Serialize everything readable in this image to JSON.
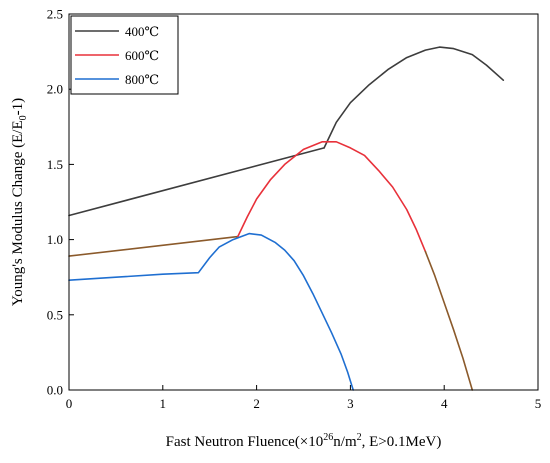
{
  "chart_data": {
    "type": "line",
    "title": "",
    "xlabel": {
      "main": "Fast Neutron Fluence(×10",
      "sup": "26",
      "mid": "n/m",
      "sup2": "2",
      "end": ", E>0.1MeV)"
    },
    "ylabel": {
      "main": "Young's Modulus Change (E/E",
      "sub": "0",
      "end": "-1)"
    },
    "xlim": [
      0,
      5
    ],
    "ylim": [
      0,
      2.5
    ],
    "xticks": [
      "0",
      "1",
      "2",
      "3",
      "4",
      "5"
    ],
    "yticks": [
      "0.0",
      "0.5",
      "1.0",
      "1.5",
      "2.0",
      "2.5"
    ],
    "grid": false,
    "legend_position": "top-left",
    "series": [
      {
        "name": "400℃",
        "color": "#3d3d3d",
        "points": [
          [
            0.0,
            1.16
          ],
          [
            2.72,
            1.61
          ]
        ]
      },
      {
        "name": "400℃",
        "color": "#3d3d3d",
        "points": [
          [
            2.72,
            1.61
          ],
          [
            2.85,
            1.78
          ],
          [
            3.0,
            1.91
          ],
          [
            3.2,
            2.03
          ],
          [
            3.4,
            2.13
          ],
          [
            3.6,
            2.21
          ],
          [
            3.8,
            2.26
          ],
          [
            3.95,
            2.28
          ],
          [
            4.1,
            2.27
          ],
          [
            4.3,
            2.23
          ],
          [
            4.45,
            2.16
          ],
          [
            4.63,
            2.06
          ]
        ]
      },
      {
        "name": "600℃",
        "color": "#8b5a2b",
        "points": [
          [
            0.0,
            0.89
          ],
          [
            1.8,
            1.02
          ]
        ]
      },
      {
        "name": "600℃",
        "color": "#e8313a",
        "points": [
          [
            1.8,
            1.02
          ],
          [
            1.9,
            1.15
          ],
          [
            2.0,
            1.27
          ],
          [
            2.15,
            1.4
          ],
          [
            2.3,
            1.5
          ],
          [
            2.5,
            1.6
          ],
          [
            2.7,
            1.65
          ],
          [
            2.85,
            1.65
          ],
          [
            3.0,
            1.61
          ],
          [
            3.15,
            1.56
          ],
          [
            3.3,
            1.46
          ],
          [
            3.45,
            1.35
          ],
          [
            3.6,
            1.2
          ],
          [
            3.7,
            1.07
          ],
          [
            3.8,
            0.92
          ]
        ]
      },
      {
        "name": "600℃",
        "color": "#8b5a2b",
        "points": [
          [
            3.8,
            0.92
          ],
          [
            3.9,
            0.76
          ],
          [
            4.0,
            0.58
          ],
          [
            4.1,
            0.4
          ],
          [
            4.2,
            0.21
          ],
          [
            4.3,
            0.0
          ]
        ]
      },
      {
        "name": "800℃",
        "color": "#1f6fd1",
        "points": [
          [
            0.0,
            0.73
          ],
          [
            0.5,
            0.75
          ],
          [
            1.0,
            0.77
          ],
          [
            1.38,
            0.78
          ],
          [
            1.5,
            0.88
          ],
          [
            1.6,
            0.95
          ],
          [
            1.75,
            1.0
          ],
          [
            1.92,
            1.04
          ],
          [
            2.05,
            1.03
          ],
          [
            2.2,
            0.98
          ],
          [
            2.3,
            0.93
          ],
          [
            2.4,
            0.86
          ],
          [
            2.5,
            0.76
          ],
          [
            2.6,
            0.64
          ],
          [
            2.7,
            0.51
          ],
          [
            2.8,
            0.38
          ],
          [
            2.9,
            0.24
          ],
          [
            2.97,
            0.12
          ],
          [
            3.03,
            0.0
          ]
        ]
      }
    ],
    "legend": [
      {
        "name": "400℃",
        "color": "#3d3d3d"
      },
      {
        "name": "600℃",
        "color": "#e8313a"
      },
      {
        "name": "800℃",
        "color": "#1f6fd1"
      }
    ]
  }
}
